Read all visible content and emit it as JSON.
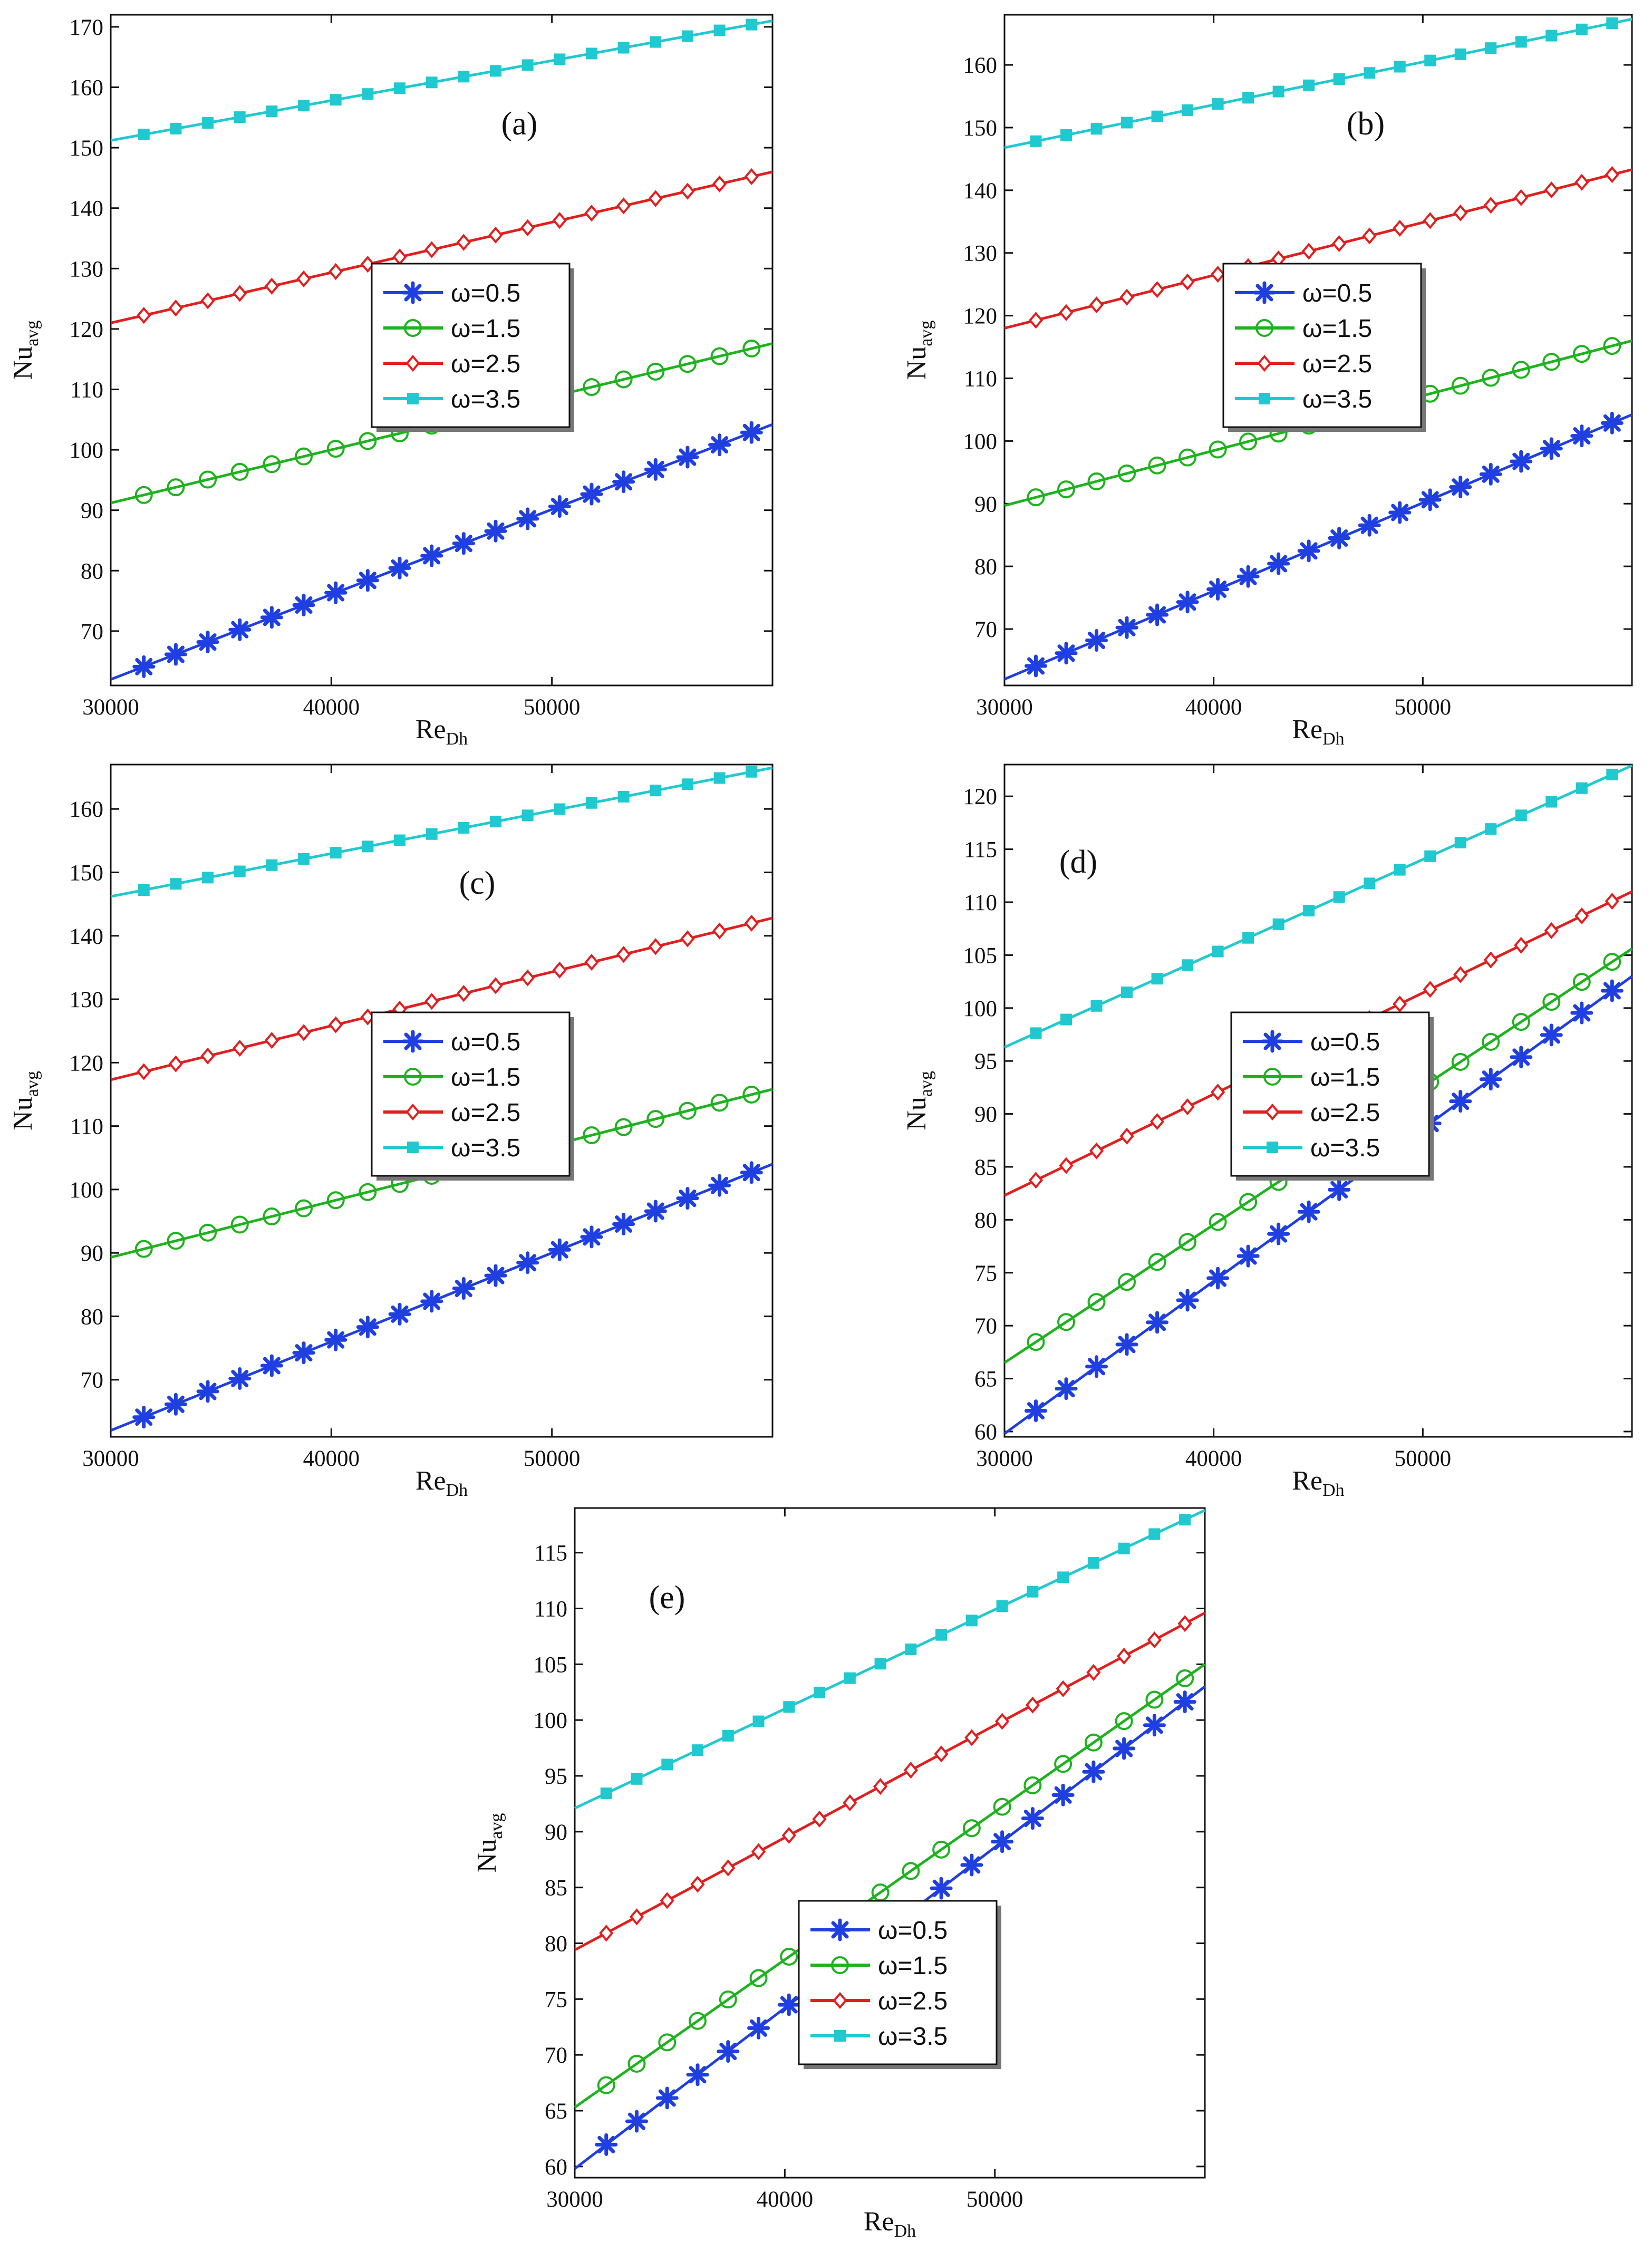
{
  "colors": {
    "w05": "#1f3fe0",
    "w15": "#1fb21f",
    "w25": "#e01f1f",
    "w35": "#1fc9cf"
  },
  "chart_data": [
    {
      "type": "line",
      "label": "(a)",
      "xlabel": "Re",
      "xlabel_sub": "Dh",
      "ylabel": "Nu",
      "ylabel_sub": "avg",
      "xlim": [
        30000,
        60000
      ],
      "xticks": [
        30000,
        40000,
        50000
      ],
      "xtick_labels": [
        "30000",
        "40000",
        "50000"
      ],
      "ylim": [
        61,
        172
      ],
      "yticks": [
        70,
        80,
        90,
        100,
        110,
        120,
        130,
        140,
        150,
        160,
        170
      ],
      "legend": [
        "ω=0.5",
        "ω=1.5",
        "ω=2.5",
        "ω=3.5"
      ],
      "legend_position": "center",
      "series": [
        {
          "name": "ω=0.5",
          "marker": "asterisk",
          "start": [
            30000,
            62
          ],
          "end": [
            60000,
            104.2
          ],
          "marker_x": [
            31500,
            60500,
            1450
          ]
        },
        {
          "name": "ω=1.5",
          "marker": "circle",
          "start": [
            30000,
            91.2
          ],
          "end": [
            60000,
            117.6
          ],
          "marker_x": [
            31500,
            60500,
            1450
          ]
        },
        {
          "name": "ω=2.5",
          "marker": "diamond",
          "start": [
            30000,
            121
          ],
          "end": [
            60000,
            146
          ],
          "marker_x": [
            31500,
            60500,
            1450
          ]
        },
        {
          "name": "ω=3.5",
          "marker": "square",
          "start": [
            30000,
            151.2
          ],
          "end": [
            60000,
            171
          ],
          "marker_x": [
            31500,
            60500,
            1450
          ]
        }
      ]
    },
    {
      "type": "line",
      "label": "(b)",
      "xlabel": "Re",
      "xlabel_sub": "Dh",
      "ylabel": "Nu",
      "ylabel_sub": "avg",
      "xlim": [
        30000,
        60000
      ],
      "xticks": [
        30000,
        40000,
        50000
      ],
      "xtick_labels": [
        "30000",
        "40000",
        "50000"
      ],
      "ylim": [
        61,
        168
      ],
      "yticks": [
        70,
        80,
        90,
        100,
        110,
        120,
        130,
        140,
        150,
        160
      ],
      "legend": [
        "ω=0.5",
        "ω=1.5",
        "ω=2.5",
        "ω=3.5"
      ],
      "legend_position": "center",
      "series": [
        {
          "name": "ω=0.5",
          "marker": "asterisk",
          "start": [
            30000,
            62
          ],
          "end": [
            60000,
            104.2
          ],
          "marker_x": [
            31500,
            60500,
            1450
          ]
        },
        {
          "name": "ω=1.5",
          "marker": "circle",
          "start": [
            30000,
            89.7
          ],
          "end": [
            60000,
            116
          ],
          "marker_x": [
            31500,
            60500,
            1450
          ]
        },
        {
          "name": "ω=2.5",
          "marker": "diamond",
          "start": [
            30000,
            118
          ],
          "end": [
            60000,
            143.3
          ],
          "marker_x": [
            31500,
            60500,
            1450
          ]
        },
        {
          "name": "ω=3.5",
          "marker": "square",
          "start": [
            30000,
            146.8
          ],
          "end": [
            60000,
            167.3
          ],
          "marker_x": [
            31500,
            60500,
            1450
          ]
        }
      ]
    },
    {
      "type": "line",
      "label": "(c)",
      "xlabel": "Re",
      "xlabel_sub": "Dh",
      "ylabel": "Nu",
      "ylabel_sub": "avg",
      "xlim": [
        30000,
        60000
      ],
      "xticks": [
        30000,
        40000,
        50000
      ],
      "xtick_labels": [
        "30000",
        "40000",
        "50000"
      ],
      "ylim": [
        61,
        167
      ],
      "yticks": [
        70,
        80,
        90,
        100,
        110,
        120,
        130,
        140,
        150,
        160
      ],
      "legend": [
        "ω=0.5",
        "ω=1.5",
        "ω=2.5",
        "ω=3.5"
      ],
      "legend_position": "center",
      "series": [
        {
          "name": "ω=0.5",
          "marker": "asterisk",
          "start": [
            30000,
            62
          ],
          "end": [
            60000,
            104
          ],
          "marker_x": [
            31500,
            60500,
            1450
          ]
        },
        {
          "name": "ω=1.5",
          "marker": "circle",
          "start": [
            30000,
            89.3
          ],
          "end": [
            60000,
            115.8
          ],
          "marker_x": [
            31500,
            60500,
            1450
          ]
        },
        {
          "name": "ω=2.5",
          "marker": "diamond",
          "start": [
            30000,
            117.3
          ],
          "end": [
            60000,
            142.8
          ],
          "marker_x": [
            31500,
            60500,
            1450
          ]
        },
        {
          "name": "ω=3.5",
          "marker": "square",
          "start": [
            30000,
            146.2
          ],
          "end": [
            60000,
            166.5
          ],
          "marker_x": [
            31500,
            60500,
            1450
          ]
        }
      ]
    },
    {
      "type": "line",
      "label": "(d)",
      "xlabel": "Re",
      "xlabel_sub": "Dh",
      "ylabel": "Nu",
      "ylabel_sub": "avg",
      "xlim": [
        30000,
        60000
      ],
      "xticks": [
        30000,
        40000,
        50000
      ],
      "xtick_labels": [
        "30000",
        "40000",
        "50000"
      ],
      "ylim": [
        59.5,
        123
      ],
      "yticks": [
        60,
        65,
        70,
        75,
        80,
        85,
        90,
        95,
        100,
        105,
        110,
        115,
        120
      ],
      "legend": [
        "ω=0.5",
        "ω=1.5",
        "ω=2.5",
        "ω=3.5"
      ],
      "legend_position": "center",
      "series": [
        {
          "name": "ω=0.5",
          "marker": "asterisk",
          "start": [
            30000,
            59.8
          ],
          "end": [
            60000,
            103
          ],
          "marker_x": [
            31500,
            60500,
            1450
          ]
        },
        {
          "name": "ω=1.5",
          "marker": "circle",
          "start": [
            30000,
            66.5
          ],
          "end": [
            60000,
            105.6
          ],
          "marker_x": [
            31500,
            60500,
            1450
          ]
        },
        {
          "name": "ω=2.5",
          "marker": "diamond",
          "start": [
            30000,
            82.3
          ],
          "end": [
            60000,
            111
          ],
          "marker_x": [
            31500,
            60500,
            1450
          ]
        },
        {
          "name": "ω=3.5",
          "marker": "square",
          "start": [
            30000,
            96.3
          ],
          "end": [
            60000,
            122.9
          ],
          "marker_x": [
            31500,
            60500,
            1450
          ]
        }
      ]
    },
    {
      "type": "line",
      "label": "(e)",
      "xlabel": "Re",
      "xlabel_sub": "Dh",
      "ylabel": "Nu",
      "ylabel_sub": "avg",
      "xlim": [
        30000,
        60000
      ],
      "xticks": [
        30000,
        40000,
        50000
      ],
      "xtick_labels": [
        "30000",
        "40000",
        "50000"
      ],
      "ylim": [
        59,
        119
      ],
      "yticks": [
        60,
        65,
        70,
        75,
        80,
        85,
        90,
        95,
        100,
        105,
        110,
        115
      ],
      "legend": [
        "ω=0.5",
        "ω=1.5",
        "ω=2.5",
        "ω=3.5"
      ],
      "legend_position": "center",
      "series": [
        {
          "name": "ω=0.5",
          "marker": "asterisk",
          "start": [
            30000,
            59.8
          ],
          "end": [
            60000,
            103
          ],
          "marker_x": [
            31500,
            60500,
            1450
          ]
        },
        {
          "name": "ω=1.5",
          "marker": "circle",
          "start": [
            30000,
            65.3
          ],
          "end": [
            60000,
            105
          ],
          "marker_x": [
            31500,
            60500,
            1450
          ]
        },
        {
          "name": "ω=2.5",
          "marker": "diamond",
          "start": [
            30000,
            79.4
          ],
          "end": [
            60000,
            109.6
          ],
          "marker_x": [
            31500,
            60500,
            1450
          ]
        },
        {
          "name": "ω=3.5",
          "marker": "square",
          "start": [
            30000,
            92.1
          ],
          "end": [
            60000,
            118.8
          ],
          "marker_x": [
            31500,
            60500,
            1450
          ]
        }
      ]
    }
  ]
}
